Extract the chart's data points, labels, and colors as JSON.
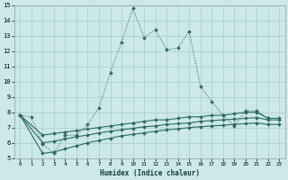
{
  "xlabel": "Humidex (Indice chaleur)",
  "background_color": "#cce8e8",
  "grid_color": "#aacccc",
  "line_color": "#2e6b62",
  "xlim": [
    -0.5,
    23.5
  ],
  "ylim": [
    5,
    15
  ],
  "xticks": [
    0,
    1,
    2,
    3,
    4,
    5,
    6,
    7,
    8,
    9,
    10,
    11,
    12,
    13,
    14,
    15,
    16,
    17,
    18,
    19,
    20,
    21,
    22,
    23
  ],
  "yticks": [
    5,
    6,
    7,
    8,
    9,
    10,
    11,
    12,
    13,
    14,
    15
  ],
  "series_main_x": [
    0,
    1,
    2,
    3,
    4,
    5,
    6,
    7,
    8,
    9,
    10,
    11,
    12,
    13,
    14,
    15,
    16,
    17,
    18,
    19,
    20,
    21,
    22
  ],
  "series_main_y": [
    7.8,
    7.7,
    5.9,
    5.3,
    6.5,
    6.5,
    7.2,
    8.3,
    10.6,
    12.6,
    14.8,
    12.9,
    13.4,
    12.1,
    12.2,
    13.3,
    9.7,
    8.7,
    7.8,
    7.1,
    8.1,
    8.1,
    7.6
  ],
  "series_line1_x": [
    0,
    2,
    3,
    4,
    5,
    6,
    7,
    8,
    9,
    10,
    11,
    12,
    13,
    14,
    15,
    16,
    17,
    18,
    19,
    20,
    21,
    22,
    23
  ],
  "series_line1_y": [
    7.8,
    6.5,
    6.6,
    6.7,
    6.8,
    6.9,
    7.0,
    7.1,
    7.2,
    7.3,
    7.4,
    7.5,
    7.5,
    7.6,
    7.7,
    7.7,
    7.8,
    7.8,
    7.9,
    8.0,
    8.0,
    7.6,
    7.6
  ],
  "series_line2_x": [
    0,
    2,
    3,
    4,
    5,
    6,
    7,
    8,
    9,
    10,
    11,
    12,
    13,
    14,
    15,
    16,
    17,
    18,
    19,
    20,
    21,
    22,
    23
  ],
  "series_line2_y": [
    7.8,
    6.0,
    6.1,
    6.25,
    6.4,
    6.5,
    6.65,
    6.75,
    6.85,
    6.95,
    7.05,
    7.1,
    7.2,
    7.25,
    7.3,
    7.4,
    7.45,
    7.5,
    7.55,
    7.6,
    7.65,
    7.5,
    7.5
  ],
  "series_line3_x": [
    0,
    2,
    3,
    4,
    5,
    6,
    7,
    8,
    9,
    10,
    11,
    12,
    13,
    14,
    15,
    16,
    17,
    18,
    19,
    20,
    21,
    22,
    23
  ],
  "series_line3_y": [
    7.8,
    5.3,
    5.4,
    5.6,
    5.8,
    6.0,
    6.15,
    6.3,
    6.45,
    6.55,
    6.65,
    6.75,
    6.85,
    6.9,
    7.0,
    7.05,
    7.1,
    7.15,
    7.2,
    7.25,
    7.3,
    7.2,
    7.2
  ]
}
